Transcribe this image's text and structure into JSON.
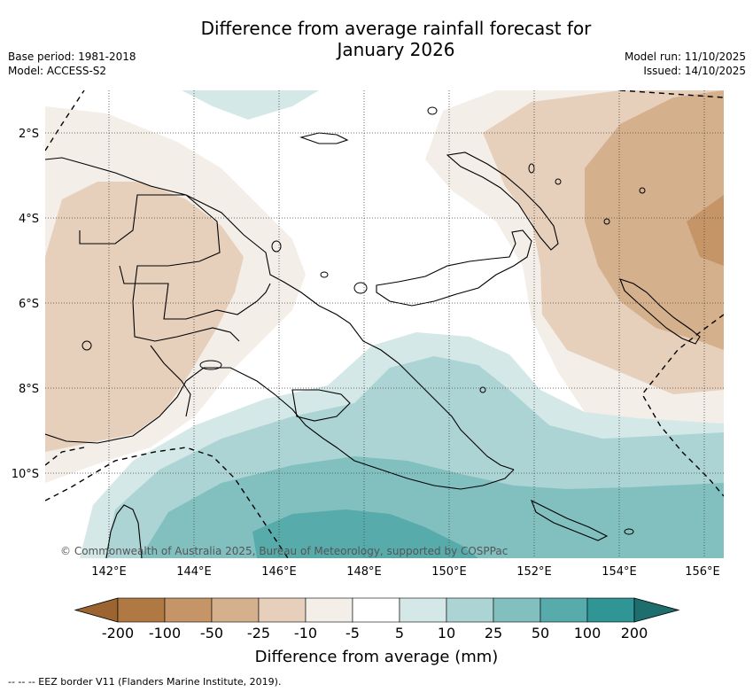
{
  "header": {
    "title_line1": "Difference from average rainfall forecast for",
    "title_line2": "January 2026",
    "base_period": "Base period: 1981-2018",
    "model": "Model: ACCESS-S2",
    "model_run": "Model run: 11/10/2025",
    "issued": "Issued: 14/10/2025"
  },
  "map": {
    "lat_labels": [
      "2°S",
      "4°S",
      "6°S",
      "8°S",
      "10°S"
    ],
    "lon_labels": [
      "142°E",
      "144°E",
      "146°E",
      "148°E",
      "150°E",
      "152°E",
      "154°E",
      "156°E"
    ],
    "copyright": "© Commonwealth of Australia 2025, Bureau of Meteorology, supported by COSPPac"
  },
  "colorbar": {
    "title": "Difference from average (mm)",
    "labels": [
      "-200",
      "-100",
      "-50",
      "-25",
      "-10",
      "-5",
      "5",
      "10",
      "25",
      "50",
      "100",
      "200"
    ],
    "colors": [
      "#9c6431",
      "#b07843",
      "#c59568",
      "#d4b08c",
      "#e6d0bc",
      "#f3eee8",
      "#ffffff",
      "#d5e8e8",
      "#acd4d4",
      "#82c0c0",
      "#57abab",
      "#2f9595",
      "#1d6e6c"
    ]
  },
  "footer": {
    "legend_text": "--  --  -- EEZ border V11 (Flanders Marine Institute, 2019)."
  }
}
